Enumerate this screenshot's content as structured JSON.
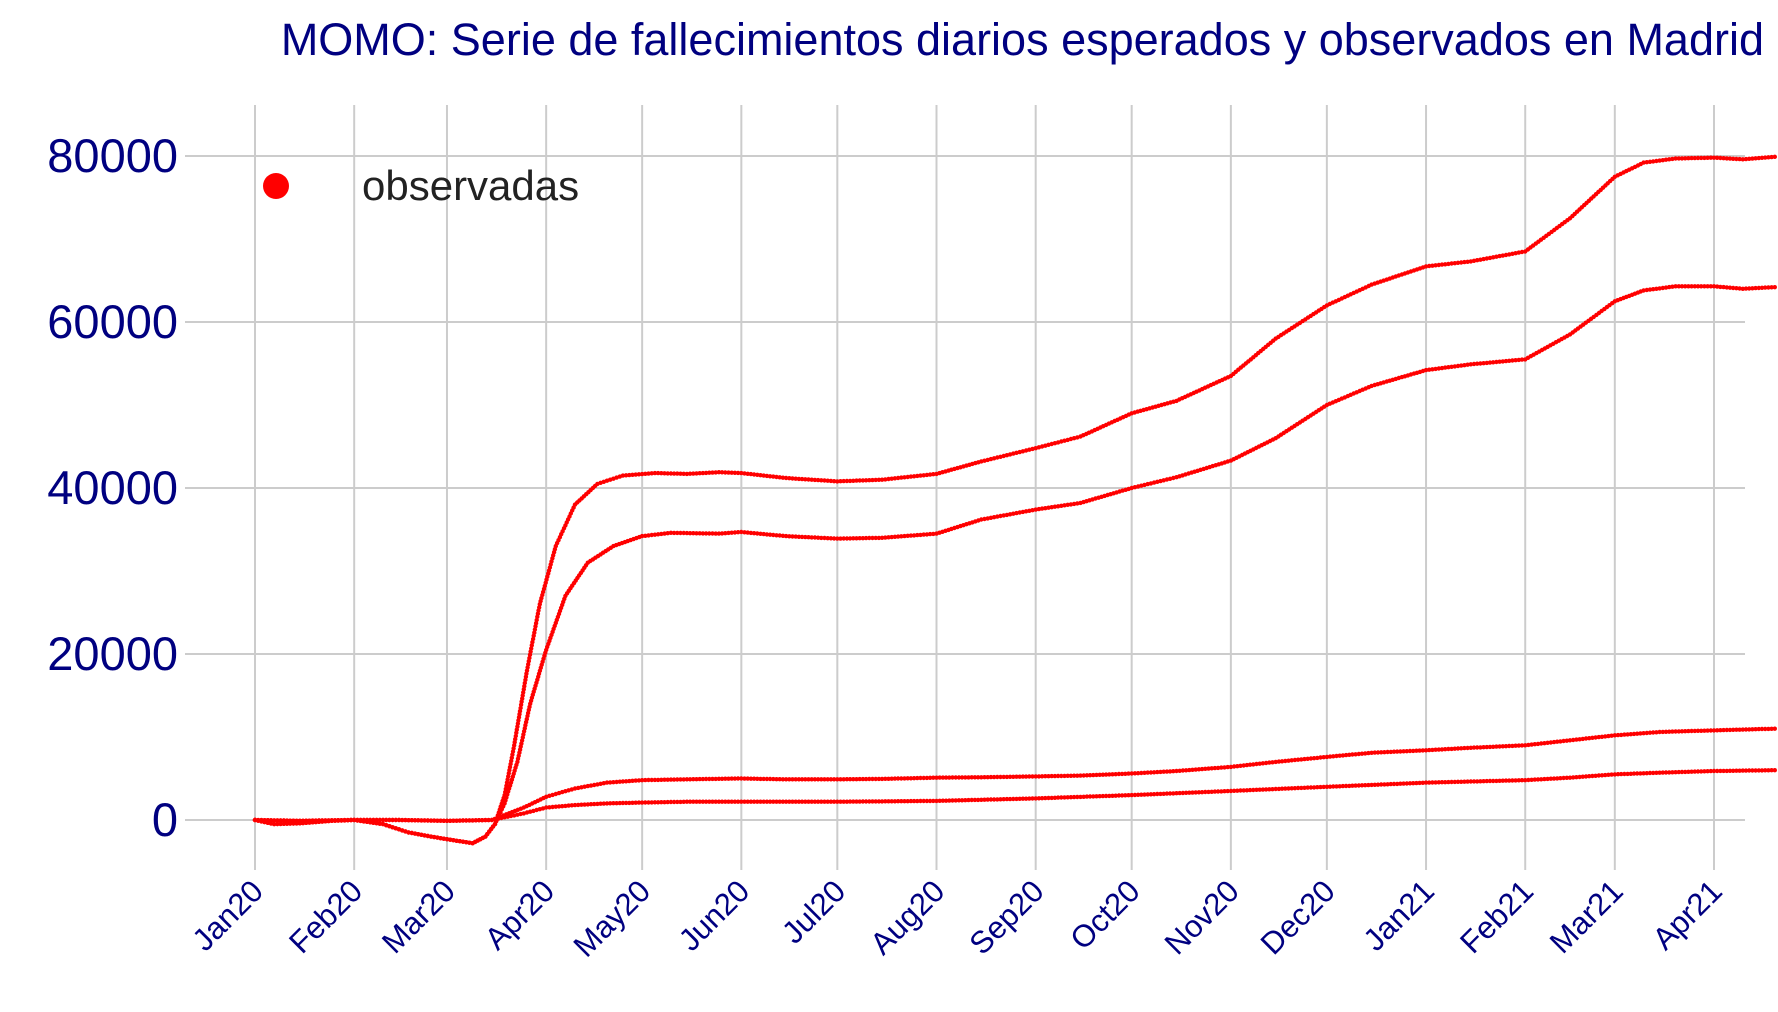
{
  "chart_data": {
    "type": "scatter",
    "title": "MOMO: Serie de fallecimientos diarios esperados y observados en Madrid",
    "xlabel": "",
    "ylabel": "",
    "x_axis": {
      "type": "date",
      "range": [
        "2020-01-01",
        "2021-04-01"
      ],
      "ticks": [
        "Jan20",
        "Feb20",
        "Mar20",
        "Apr20",
        "May20",
        "Jun20",
        "Jul20",
        "Aug20",
        "Sep20",
        "Oct20",
        "Nov20",
        "Dec20",
        "Jan21",
        "Feb21",
        "Mar21",
        "Apr21"
      ]
    },
    "y_axis": {
      "range": [
        -6000,
        85000
      ],
      "ticks": [
        "0",
        "20000",
        "40000",
        "60000",
        "80000"
      ]
    },
    "grid": true,
    "legend": {
      "position": "top-left",
      "entries": [
        "observadas"
      ]
    },
    "colors": {
      "series": "#ff0000",
      "text": "#000080",
      "grid": "#cccccc"
    },
    "series": [
      {
        "name": "observadas",
        "points": [
          [
            "2020-01-01",
            0
          ],
          [
            "2020-01-07",
            -500
          ],
          [
            "2020-01-15",
            -400
          ],
          [
            "2020-01-25",
            -100
          ],
          [
            "2020-02-01",
            0
          ],
          [
            "2020-02-10",
            -500
          ],
          [
            "2020-02-18",
            -1500
          ],
          [
            "2020-02-25",
            -2000
          ],
          [
            "2020-03-04",
            -2500
          ],
          [
            "2020-03-09",
            -2800
          ],
          [
            "2020-03-13",
            -2000
          ],
          [
            "2020-03-16",
            -500
          ],
          [
            "2020-03-19",
            3000
          ],
          [
            "2020-03-22",
            9000
          ],
          [
            "2020-03-26",
            18000
          ],
          [
            "2020-03-30",
            26000
          ],
          [
            "2020-04-04",
            33000
          ],
          [
            "2020-04-10",
            38000
          ],
          [
            "2020-04-17",
            40500
          ],
          [
            "2020-04-25",
            41500
          ],
          [
            "2020-05-05",
            41800
          ],
          [
            "2020-05-15",
            41700
          ],
          [
            "2020-05-25",
            41900
          ],
          [
            "2020-06-01",
            41800
          ],
          [
            "2020-06-15",
            41200
          ],
          [
            "2020-07-01",
            40800
          ],
          [
            "2020-07-15",
            41000
          ],
          [
            "2020-08-01",
            41700
          ],
          [
            "2020-08-15",
            43200
          ],
          [
            "2020-09-01",
            44800
          ],
          [
            "2020-09-15",
            46200
          ],
          [
            "2020-10-01",
            49000
          ],
          [
            "2020-10-15",
            50500
          ],
          [
            "2020-11-01",
            53500
          ],
          [
            "2020-11-15",
            58000
          ],
          [
            "2020-12-01",
            62000
          ],
          [
            "2020-12-15",
            64500
          ],
          [
            "2021-01-01",
            66700
          ],
          [
            "2021-01-15",
            67300
          ],
          [
            "2021-02-01",
            68500
          ],
          [
            "2021-02-15",
            72500
          ],
          [
            "2021-03-01",
            77500
          ],
          [
            "2021-03-10",
            79200
          ],
          [
            "2021-03-20",
            79700
          ],
          [
            "2021-04-01",
            79800
          ],
          [
            "2021-04-10",
            79600
          ],
          [
            "2021-04-20",
            79900
          ]
        ]
      },
      {
        "name": "",
        "points": [
          [
            "2020-01-01",
            0
          ],
          [
            "2020-01-07",
            -500
          ],
          [
            "2020-01-15",
            -400
          ],
          [
            "2020-01-25",
            -100
          ],
          [
            "2020-02-01",
            0
          ],
          [
            "2020-02-10",
            -500
          ],
          [
            "2020-02-18",
            -1500
          ],
          [
            "2020-02-25",
            -2000
          ],
          [
            "2020-03-04",
            -2500
          ],
          [
            "2020-03-09",
            -2800
          ],
          [
            "2020-03-13",
            -2000
          ],
          [
            "2020-03-16",
            -500
          ],
          [
            "2020-03-19",
            2000
          ],
          [
            "2020-03-23",
            7000
          ],
          [
            "2020-03-27",
            14000
          ],
          [
            "2020-04-01",
            20500
          ],
          [
            "2020-04-07",
            27000
          ],
          [
            "2020-04-14",
            31000
          ],
          [
            "2020-04-22",
            33000
          ],
          [
            "2020-05-01",
            34200
          ],
          [
            "2020-05-10",
            34600
          ],
          [
            "2020-05-25",
            34500
          ],
          [
            "2020-06-01",
            34700
          ],
          [
            "2020-06-15",
            34200
          ],
          [
            "2020-07-01",
            33900
          ],
          [
            "2020-07-15",
            34000
          ],
          [
            "2020-08-01",
            34500
          ],
          [
            "2020-08-15",
            36200
          ],
          [
            "2020-09-01",
            37400
          ],
          [
            "2020-09-15",
            38200
          ],
          [
            "2020-10-01",
            40000
          ],
          [
            "2020-10-15",
            41300
          ],
          [
            "2020-11-01",
            43300
          ],
          [
            "2020-11-15",
            46000
          ],
          [
            "2020-12-01",
            50000
          ],
          [
            "2020-12-15",
            52300
          ],
          [
            "2021-01-01",
            54200
          ],
          [
            "2021-01-15",
            54900
          ],
          [
            "2021-02-01",
            55500
          ],
          [
            "2021-02-15",
            58500
          ],
          [
            "2021-03-01",
            62500
          ],
          [
            "2021-03-10",
            63800
          ],
          [
            "2021-03-20",
            64300
          ],
          [
            "2021-04-01",
            64300
          ],
          [
            "2021-04-10",
            64000
          ],
          [
            "2021-04-20",
            64200
          ]
        ]
      },
      {
        "name": "",
        "points": [
          [
            "2020-01-01",
            0
          ],
          [
            "2020-01-15",
            -100
          ],
          [
            "2020-02-01",
            0
          ],
          [
            "2020-02-15",
            0
          ],
          [
            "2020-03-01",
            -100
          ],
          [
            "2020-03-15",
            0
          ],
          [
            "2020-03-25",
            1500
          ],
          [
            "2020-04-01",
            2800
          ],
          [
            "2020-04-10",
            3800
          ],
          [
            "2020-04-20",
            4500
          ],
          [
            "2020-05-01",
            4800
          ],
          [
            "2020-05-15",
            4900
          ],
          [
            "2020-06-01",
            5000
          ],
          [
            "2020-06-15",
            4900
          ],
          [
            "2020-07-01",
            4900
          ],
          [
            "2020-07-15",
            4950
          ],
          [
            "2020-08-01",
            5100
          ],
          [
            "2020-08-15",
            5150
          ],
          [
            "2020-09-01",
            5250
          ],
          [
            "2020-09-15",
            5350
          ],
          [
            "2020-10-01",
            5600
          ],
          [
            "2020-10-15",
            5900
          ],
          [
            "2020-11-01",
            6400
          ],
          [
            "2020-11-15",
            7000
          ],
          [
            "2020-12-01",
            7600
          ],
          [
            "2020-12-15",
            8100
          ],
          [
            "2021-01-01",
            8400
          ],
          [
            "2021-01-15",
            8700
          ],
          [
            "2021-02-01",
            9000
          ],
          [
            "2021-02-15",
            9600
          ],
          [
            "2021-03-01",
            10200
          ],
          [
            "2021-03-15",
            10600
          ],
          [
            "2021-04-01",
            10800
          ],
          [
            "2021-04-20",
            11000
          ]
        ]
      },
      {
        "name": "",
        "points": [
          [
            "2020-01-01",
            0
          ],
          [
            "2020-01-15",
            -100
          ],
          [
            "2020-02-01",
            0
          ],
          [
            "2020-02-15",
            0
          ],
          [
            "2020-03-01",
            -100
          ],
          [
            "2020-03-15",
            0
          ],
          [
            "2020-03-25",
            800
          ],
          [
            "2020-04-01",
            1500
          ],
          [
            "2020-04-10",
            1800
          ],
          [
            "2020-04-20",
            2000
          ],
          [
            "2020-05-01",
            2100
          ],
          [
            "2020-05-15",
            2200
          ],
          [
            "2020-06-01",
            2200
          ],
          [
            "2020-07-01",
            2200
          ],
          [
            "2020-08-01",
            2300
          ],
          [
            "2020-09-01",
            2600
          ],
          [
            "2020-10-01",
            3000
          ],
          [
            "2020-11-01",
            3500
          ],
          [
            "2020-12-01",
            4000
          ],
          [
            "2021-01-01",
            4500
          ],
          [
            "2021-02-01",
            4800
          ],
          [
            "2021-02-15",
            5100
          ],
          [
            "2021-03-01",
            5500
          ],
          [
            "2021-03-15",
            5700
          ],
          [
            "2021-04-01",
            5900
          ],
          [
            "2021-04-20",
            6000
          ]
        ]
      }
    ]
  }
}
